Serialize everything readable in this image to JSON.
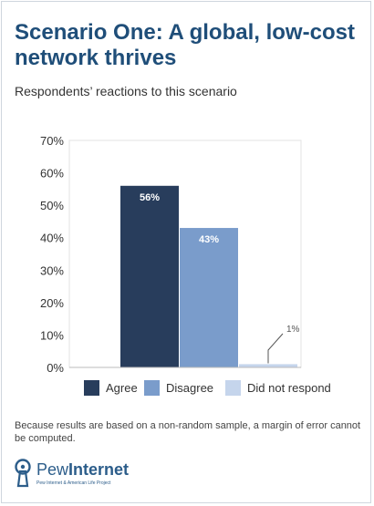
{
  "header": {
    "title": "Scenario One: A global, low-cost network thrives",
    "subtitle": "Respondents’ reactions to this scenario"
  },
  "chart_data": {
    "type": "bar",
    "categories": [
      "Agree",
      "Disagree",
      "Did not respond"
    ],
    "values": [
      56,
      43,
      1
    ],
    "data_labels": [
      "56%",
      "43%",
      "1%"
    ],
    "colors": [
      "#283d5c",
      "#7a9ccb",
      "#c5d5ec"
    ],
    "ylim": [
      0,
      70
    ],
    "yticks": [
      "0%",
      "10%",
      "20%",
      "30%",
      "40%",
      "50%",
      "60%",
      "70%"
    ],
    "grid": false,
    "legend_placement": "bottom"
  },
  "footnote": "Because results are based on a non-random sample, a margin of error cannot be computed.",
  "logo": {
    "word_regular": "Pew",
    "word_bold": "Internet",
    "tagline": "Pew Internet & American Life Project"
  }
}
